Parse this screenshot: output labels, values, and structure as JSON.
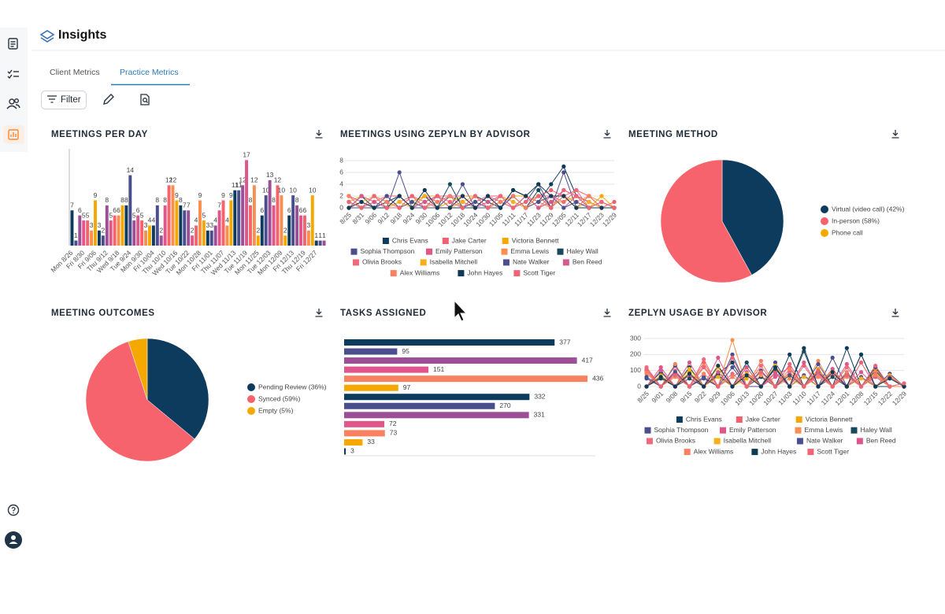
{
  "header": {
    "title": "Insights"
  },
  "tabs": [
    "Client Metrics",
    "Practice Metrics"
  ],
  "active_tab": 1,
  "toolbar": {
    "filter": "Filter"
  },
  "chart_data": [
    {
      "type": "bar",
      "title": "MEETINGS PER DAY",
      "categories": [
        "Mon 8/26",
        null,
        null,
        "Fri 8/30",
        null,
        null,
        "Fri 9/06",
        null,
        null,
        "Thu 9/12",
        null,
        null,
        "Wed 9/18",
        null,
        null,
        "Tue 9/24",
        null,
        null,
        "Mon 9/30",
        null,
        null,
        "Fri 10/04",
        null,
        null,
        "Thu 10/10",
        null,
        null,
        "Wed 10/16",
        null,
        null,
        "Tue 10/22",
        null,
        null,
        "Mon 10/28",
        null,
        null,
        "Fri 11/01",
        null,
        null,
        "Thu 11/07",
        null,
        null,
        "Wed 11/13",
        null,
        null,
        "Tue 11/19",
        null,
        null,
        "Mon 11/25",
        null,
        null,
        "Tue 12/03",
        null,
        null,
        "Mon 12/09",
        null,
        null,
        "Fri 12/13",
        null,
        null,
        "Thu 12/19",
        null,
        null,
        "Fri 12/27",
        null,
        null
      ],
      "values": [
        7,
        1,
        6,
        5,
        5,
        3,
        9,
        3,
        2,
        8,
        5,
        6,
        6,
        8,
        8,
        14,
        5,
        6,
        5,
        3,
        4,
        4,
        8,
        2,
        8,
        12,
        12,
        9,
        8,
        7,
        7,
        2,
        4,
        9,
        5,
        3,
        3,
        4,
        7,
        9,
        4,
        9,
        11,
        11,
        12,
        17,
        8,
        12,
        2,
        6,
        10,
        13,
        8,
        12,
        10,
        2,
        6,
        10,
        8,
        6,
        6,
        3,
        10,
        1,
        1,
        1
      ],
      "colors": [
        "#0d3b5e",
        "#4a4e8c",
        "#9b4f96",
        "#e0558a",
        "#f7636c",
        "#f98e4e",
        "#f5a800"
      ],
      "ylim": [
        0,
        18
      ]
    },
    {
      "type": "line",
      "title": "MEETINGS USING ZEPYLN BY ADVISOR",
      "x": [
        "8/25",
        "8/31",
        "9/06",
        "9/12",
        "9/18",
        "9/24",
        "9/30",
        "10/06",
        "10/12",
        "10/18",
        "10/24",
        "10/30",
        "11/05",
        "11/11",
        "11/17",
        "11/23",
        "11/29",
        "12/05",
        "12/11",
        "12/17",
        "12/23",
        "12/29"
      ],
      "series": [
        {
          "name": "Chris Evans",
          "color": "#0d3b5e",
          "values": [
            0,
            2,
            0,
            1,
            2,
            0,
            1,
            2,
            0,
            0,
            2,
            1,
            0,
            3,
            2,
            1,
            4,
            7,
            2,
            1,
            0,
            0
          ]
        },
        {
          "name": "Jake Carter",
          "color": "#f0606e",
          "values": [
            2,
            0,
            2,
            0,
            1,
            2,
            0,
            2,
            2,
            1,
            0,
            2,
            2,
            1,
            0,
            2,
            3,
            2,
            3,
            2,
            0,
            1
          ]
        },
        {
          "name": "Victoria Bennett",
          "color": "#f5a800",
          "values": [
            1,
            2,
            0,
            2,
            0,
            1,
            2,
            0,
            1,
            2,
            2,
            0,
            1,
            2,
            2,
            0,
            1,
            1,
            2,
            0,
            2,
            0
          ]
        },
        {
          "name": "Sophia Thompson",
          "color": "#4a4e8c",
          "values": [
            0,
            0,
            1,
            0,
            6,
            0,
            0,
            2,
            0,
            4,
            0,
            0,
            2,
            0,
            1,
            4,
            0,
            6,
            0,
            2,
            0,
            0
          ]
        },
        {
          "name": "Emily Patterson",
          "color": "#e0558a",
          "values": [
            2,
            1,
            0,
            2,
            2,
            0,
            2,
            1,
            2,
            0,
            1,
            2,
            0,
            2,
            0,
            2,
            2,
            0,
            2,
            1,
            0,
            0
          ]
        },
        {
          "name": "Emma Lewis",
          "color": "#f98e4e",
          "values": [
            1,
            0,
            2,
            1,
            0,
            2,
            0,
            2,
            0,
            2,
            2,
            0,
            1,
            0,
            2,
            1,
            0,
            2,
            1,
            2,
            1,
            0
          ]
        },
        {
          "name": "Haley Wall",
          "color": "#174a5c",
          "values": [
            0,
            2,
            0,
            0,
            2,
            0,
            2,
            0,
            4,
            0,
            0,
            2,
            0,
            2,
            0,
            3,
            0,
            2,
            0,
            0,
            0,
            0
          ]
        },
        {
          "name": "Olivia Brooks",
          "color": "#ef6b7b",
          "values": [
            2,
            0,
            1,
            2,
            0,
            2,
            1,
            0,
            2,
            2,
            0,
            2,
            1,
            0,
            2,
            0,
            2,
            1,
            3,
            0,
            1,
            0
          ]
        },
        {
          "name": "Isabella Mitchell",
          "color": "#f7b01a",
          "values": [
            0,
            1,
            2,
            0,
            1,
            0,
            2,
            2,
            0,
            1,
            2,
            0,
            2,
            1,
            0,
            2,
            0,
            2,
            0,
            1,
            0,
            0
          ]
        },
        {
          "name": "Nate Walker",
          "color": "#4c4f8f",
          "values": [
            1,
            0,
            0,
            2,
            0,
            1,
            0,
            0,
            2,
            0,
            1,
            0,
            0,
            2,
            0,
            1,
            2,
            0,
            1,
            0,
            0,
            0
          ]
        },
        {
          "name": "Ben Reed",
          "color": "#d9578c",
          "values": [
            0,
            2,
            1,
            0,
            2,
            0,
            1,
            2,
            0,
            2,
            0,
            1,
            2,
            0,
            2,
            0,
            1,
            3,
            2,
            0,
            1,
            0
          ]
        },
        {
          "name": "Alex Williams",
          "color": "#f98060",
          "values": [
            2,
            0,
            2,
            1,
            0,
            2,
            0,
            1,
            2,
            0,
            2,
            0,
            1,
            2,
            0,
            2,
            0,
            2,
            0,
            2,
            0,
            0
          ]
        },
        {
          "name": "John Hayes",
          "color": "#0e3a55",
          "values": [
            0,
            1,
            0,
            0,
            2,
            0,
            3,
            0,
            0,
            2,
            0,
            2,
            0,
            3,
            2,
            4,
            2,
            2,
            0,
            0,
            0,
            0
          ]
        },
        {
          "name": "Scott Tiger",
          "color": "#f06477",
          "values": [
            1,
            0,
            2,
            0,
            0,
            2,
            0,
            2,
            1,
            0,
            2,
            0,
            2,
            0,
            1,
            2,
            0,
            3,
            2,
            0,
            1,
            0
          ]
        }
      ],
      "ylim": [
        0,
        8
      ],
      "yticks": [
        0,
        2,
        4,
        6,
        8
      ],
      "grid": true
    },
    {
      "type": "pie",
      "title": "MEETING METHOD",
      "categories": [
        "Virtual (video call) (42%)",
        "In-person (58%)",
        "Phone call"
      ],
      "values": [
        42,
        58,
        0
      ],
      "colors": [
        "#0d3b5e",
        "#f7636c",
        "#f5a800"
      ]
    },
    {
      "type": "pie",
      "title": "MEETING OUTCOMES",
      "categories": [
        "Pending Review (36%)",
        "Synced (59%)",
        "Empty (5%)"
      ],
      "values": [
        36,
        59,
        5
      ],
      "colors": [
        "#0d3b5e",
        "#f7636c",
        "#f5a800"
      ]
    },
    {
      "type": "hbar",
      "title": "TASKS ASSIGNED",
      "values": [
        377,
        95,
        417,
        151,
        436,
        97,
        332,
        270,
        331,
        72,
        73,
        33,
        3
      ],
      "colors": [
        "#0d3b5e",
        "#4a4e8c",
        "#9b4f96",
        "#e0558a",
        "#f98060",
        "#f5a800"
      ],
      "xlim": [
        0,
        450
      ]
    },
    {
      "type": "line",
      "title": "ZEPLYN USAGE BY ADVISOR",
      "x": [
        "8/25",
        "9/01",
        "9/08",
        "9/15",
        "9/22",
        "9/29",
        "10/06",
        "10/13",
        "10/20",
        "10/27",
        "11/03",
        "11/10",
        "11/17",
        "11/24",
        "12/01",
        "12/08",
        "12/15",
        "12/22",
        "12/29"
      ],
      "series": [
        {
          "name": "Chris Evans",
          "color": "#0d3b5e",
          "values": [
            0,
            50,
            0,
            120,
            0,
            80,
            150,
            0,
            60,
            0,
            200,
            0,
            90,
            0,
            240,
            0,
            100,
            0,
            0
          ]
        },
        {
          "name": "Jake Carter",
          "color": "#f0606e",
          "values": [
            100,
            0,
            80,
            0,
            150,
            0,
            60,
            120,
            0,
            90,
            0,
            130,
            0,
            80,
            0,
            150,
            0,
            60,
            0
          ]
        },
        {
          "name": "Victoria Bennett",
          "color": "#f5a800",
          "values": [
            0,
            60,
            0,
            90,
            0,
            120,
            0,
            50,
            100,
            0,
            80,
            0,
            110,
            0,
            70,
            0,
            90,
            0,
            0
          ]
        },
        {
          "name": "Sophia Thompson",
          "color": "#4a4e8c",
          "values": [
            50,
            0,
            130,
            0,
            60,
            0,
            200,
            0,
            0,
            150,
            0,
            70,
            0,
            180,
            0,
            60,
            0,
            80,
            0
          ]
        },
        {
          "name": "Emily Patterson",
          "color": "#e0558a",
          "values": [
            0,
            120,
            0,
            70,
            0,
            180,
            0,
            90,
            0,
            60,
            120,
            0,
            80,
            0,
            140,
            0,
            60,
            0,
            0
          ]
        },
        {
          "name": "Emma Lewis",
          "color": "#f98e4e",
          "values": [
            80,
            0,
            60,
            0,
            130,
            0,
            290,
            0,
            70,
            0,
            50,
            0,
            160,
            0,
            60,
            0,
            110,
            0,
            0
          ]
        },
        {
          "name": "Haley Wall",
          "color": "#174a5c",
          "values": [
            0,
            90,
            0,
            50,
            0,
            70,
            0,
            150,
            0,
            110,
            0,
            220,
            0,
            60,
            0,
            200,
            0,
            0,
            0
          ]
        },
        {
          "name": "Olivia Brooks",
          "color": "#ef6b7b",
          "values": [
            120,
            0,
            100,
            0,
            170,
            0,
            80,
            0,
            130,
            0,
            90,
            0,
            70,
            0,
            120,
            0,
            80,
            0,
            0
          ]
        },
        {
          "name": "Isabella Mitchell",
          "color": "#f7b01a",
          "values": [
            0,
            70,
            0,
            110,
            0,
            60,
            0,
            80,
            0,
            130,
            0,
            60,
            0,
            100,
            0,
            50,
            0,
            70,
            0
          ]
        },
        {
          "name": "Nate Walker",
          "color": "#4c4f8f",
          "values": [
            60,
            0,
            90,
            0,
            50,
            0,
            120,
            0,
            100,
            0,
            70,
            0,
            140,
            0,
            80,
            0,
            120,
            0,
            0
          ]
        },
        {
          "name": "Ben Reed",
          "color": "#d9578c",
          "values": [
            0,
            100,
            0,
            150,
            0,
            90,
            0,
            120,
            0,
            80,
            0,
            150,
            0,
            110,
            0,
            90,
            0,
            60,
            0
          ]
        },
        {
          "name": "Alex Williams",
          "color": "#f98060",
          "values": [
            90,
            0,
            140,
            0,
            80,
            0,
            60,
            0,
            160,
            0,
            110,
            0,
            60,
            0,
            90,
            0,
            70,
            0,
            0
          ]
        },
        {
          "name": "John Hayes",
          "color": "#0e3a55",
          "values": [
            0,
            60,
            0,
            80,
            0,
            130,
            0,
            70,
            0,
            120,
            0,
            240,
            0,
            90,
            0,
            200,
            0,
            50,
            0
          ]
        },
        {
          "name": "Scott Tiger",
          "color": "#f06477",
          "values": [
            110,
            0,
            70,
            0,
            120,
            0,
            180,
            0,
            90,
            0,
            140,
            0,
            100,
            0,
            70,
            0,
            130,
            0,
            20
          ]
        }
      ],
      "ylim": [
        0,
        300
      ],
      "yticks": [
        0,
        100,
        200,
        300
      ],
      "grid": true
    }
  ]
}
